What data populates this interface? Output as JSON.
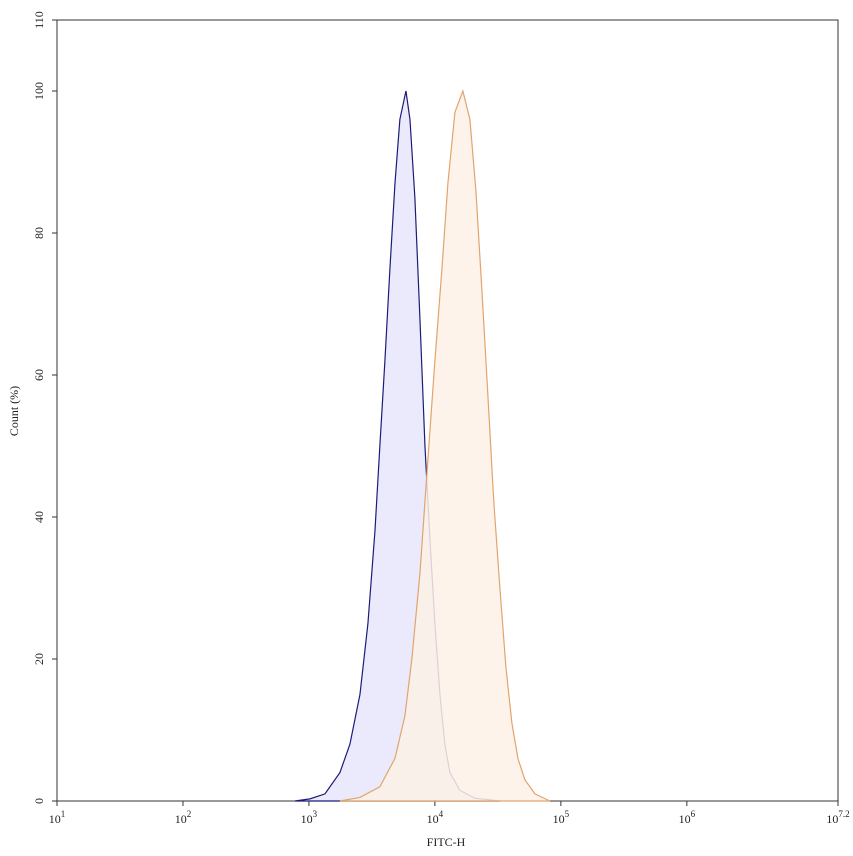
{
  "chart_data": {
    "type": "area",
    "xlabel": "FITC-H",
    "ylabel": "Count (%)",
    "log_x": true,
    "xlim": [
      10,
      15848931.92
    ],
    "xticks": [
      {
        "value": 10,
        "label": "10",
        "exponent": "1"
      },
      {
        "value": 100,
        "label": "10",
        "exponent": "2"
      },
      {
        "value": 1000,
        "label": "10",
        "exponent": "3"
      },
      {
        "value": 10000,
        "label": "10",
        "exponent": "4"
      },
      {
        "value": 100000,
        "label": "10",
        "exponent": "5"
      },
      {
        "value": 1000000,
        "label": "10",
        "exponent": "6"
      },
      {
        "value": 15848931.92,
        "label": "10",
        "exponent": "7.2"
      }
    ],
    "ylim": [
      0,
      110
    ],
    "yticks": [
      0,
      20,
      40,
      60,
      80,
      100,
      110
    ],
    "series": [
      {
        "color": "#1c1c78",
        "fill": "#e6e6fb",
        "x": [
          774,
          1019,
          1340,
          1762,
          2115,
          2541,
          2940,
          3342,
          3656,
          4010,
          4395,
          4819,
          5272,
          5888,
          6339,
          6934,
          7603,
          8337,
          9120,
          10000,
          10965,
          11995,
          13152,
          15776,
          20749,
          32810
        ],
        "values": [
          0,
          0.3,
          1,
          4,
          8,
          15,
          25,
          38,
          50,
          62,
          75,
          87,
          96,
          100,
          96,
          85,
          68,
          50,
          37,
          25,
          15,
          8,
          4,
          1.5,
          0.4,
          0
        ]
      },
      {
        "color": "#e2a46c",
        "fill": "#fdf1e6",
        "x": [
          1762,
          2541,
          3656,
          4819,
          5781,
          6561,
          7603,
          8790,
          10000,
          11376,
          12680,
          14420,
          16672,
          18967,
          21150,
          23600,
          26360,
          29380,
          32810,
          36560,
          40830,
          45600,
          51760,
          62230,
          81850
        ],
        "values": [
          0,
          0.5,
          2,
          6,
          12,
          20,
          32,
          48,
          62,
          75,
          87,
          97,
          100,
          96,
          86,
          72,
          57,
          42,
          30,
          19,
          11,
          6,
          3,
          1,
          0
        ]
      }
    ]
  }
}
